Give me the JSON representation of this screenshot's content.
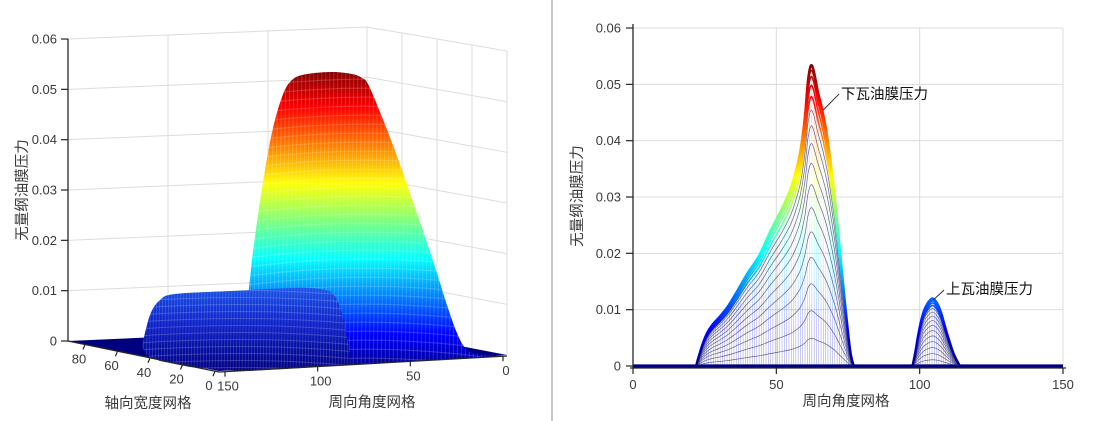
{
  "figure": {
    "background": "#ffffff",
    "divider_color": "#909090"
  },
  "colors": {
    "colormap": "jet",
    "jet_stops": [
      [
        "0%",
        "#00007f"
      ],
      [
        "12.5%",
        "#0000ff"
      ],
      [
        "37.5%",
        "#00ffff"
      ],
      [
        "62.5%",
        "#ffff00"
      ],
      [
        "87.5%",
        "#ff0000"
      ],
      [
        "100%",
        "#7f0000"
      ]
    ],
    "base_navy": "#00007f",
    "inner_mesh_line": "#2b2b72",
    "ridge_top_blue": "#1a55e8",
    "axis": "#262626",
    "grid": "#dcdcdc",
    "tick_label": "#3a3a3a"
  },
  "chart_data": [
    {
      "id": "left-3d-mesh",
      "type": "surface-mesh-3d",
      "colormap": "jet",
      "zlabel": "无量纲油膜压力",
      "xlabel": "轴向宽度网格",
      "ylabel": "周向角度网格",
      "z_ticks": [
        "0",
        "0.01",
        "0.02",
        "0.03",
        "0.04",
        "0.05",
        "0.06"
      ],
      "x_ticks": [
        "80",
        "60",
        "40",
        "20",
        "0"
      ],
      "y_ticks": [
        "150",
        "100",
        "50",
        "0"
      ],
      "zlim": [
        0,
        0.06
      ],
      "axial_range": [
        0,
        80
      ],
      "circumferential_range": [
        0,
        150
      ],
      "grid": true,
      "peaks": [
        {
          "name": "下瓦油膜压力",
          "max_pressure": 0.053,
          "circumferential_span": [
            22,
            77
          ],
          "peak_at": 62
        },
        {
          "name": "上瓦油膜压力",
          "max_pressure": 0.012,
          "circumferential_span": [
            98,
            114
          ],
          "peak_at": 105
        }
      ]
    },
    {
      "id": "right-pressure-profile",
      "type": "mesh-profile-2d",
      "colormap": "jet",
      "ylabel": "无量纲油膜压力",
      "xlabel": "周向角度网格",
      "x_ticks": [
        "0",
        "50",
        "100",
        "150"
      ],
      "y_ticks": [
        "0",
        "0.01",
        "0.02",
        "0.03",
        "0.04",
        "0.05",
        "0.06"
      ],
      "xlim": [
        0,
        150
      ],
      "ylim": [
        0,
        0.06
      ],
      "grid": true,
      "n_axial_layers": 17,
      "series": [
        {
          "name": "下瓦油膜压力",
          "max_pressure": 0.0533,
          "envelope": [
            [
              22,
              0
            ],
            [
              23,
              0.0018
            ],
            [
              24.5,
              0.0042
            ],
            [
              26,
              0.006
            ],
            [
              28,
              0.0075
            ],
            [
              30,
              0.0086
            ],
            [
              33,
              0.0105
            ],
            [
              36,
              0.013
            ],
            [
              40,
              0.0165
            ],
            [
              44,
              0.0196
            ],
            [
              48,
              0.024
            ],
            [
              52,
              0.028
            ],
            [
              55,
              0.0315
            ],
            [
              57,
              0.035
            ],
            [
              58.5,
              0.0385
            ],
            [
              60,
              0.0445
            ],
            [
              61,
              0.0505
            ],
            [
              62,
              0.0533
            ],
            [
              63,
              0.0525
            ],
            [
              64.5,
              0.0487
            ],
            [
              66,
              0.0455
            ],
            [
              67.5,
              0.0415
            ],
            [
              69,
              0.036
            ],
            [
              70.5,
              0.0295
            ],
            [
              72,
              0.0215
            ],
            [
              73.5,
              0.0135
            ],
            [
              75,
              0.006
            ],
            [
              76,
              0.002
            ],
            [
              77,
              0
            ]
          ]
        },
        {
          "name": "上瓦油膜压力",
          "max_pressure": 0.012,
          "envelope": [
            [
              97.5,
              0
            ],
            [
              98.5,
              0.0025
            ],
            [
              99.5,
              0.0055
            ],
            [
              100.5,
              0.008
            ],
            [
              101.5,
              0.0098
            ],
            [
              103,
              0.0113
            ],
            [
              104.5,
              0.012
            ],
            [
              106,
              0.0112
            ],
            [
              107.5,
              0.0094
            ],
            [
              109,
              0.0067
            ],
            [
              110.5,
              0.0042
            ],
            [
              112,
              0.002
            ],
            [
              114,
              0
            ]
          ]
        }
      ],
      "annotations": [
        {
          "text": "下瓦油膜压力",
          "leader_from": {
            "x": 66.3,
            "z": 0.0454
          },
          "leader_to": {
            "x": 71.9,
            "z": 0.0483
          }
        },
        {
          "text": "上瓦油膜压力",
          "leader_from": {
            "x": 104.7,
            "z": 0.0117
          },
          "leader_to": {
            "x": 108.5,
            "z": 0.0135
          }
        }
      ]
    }
  ]
}
